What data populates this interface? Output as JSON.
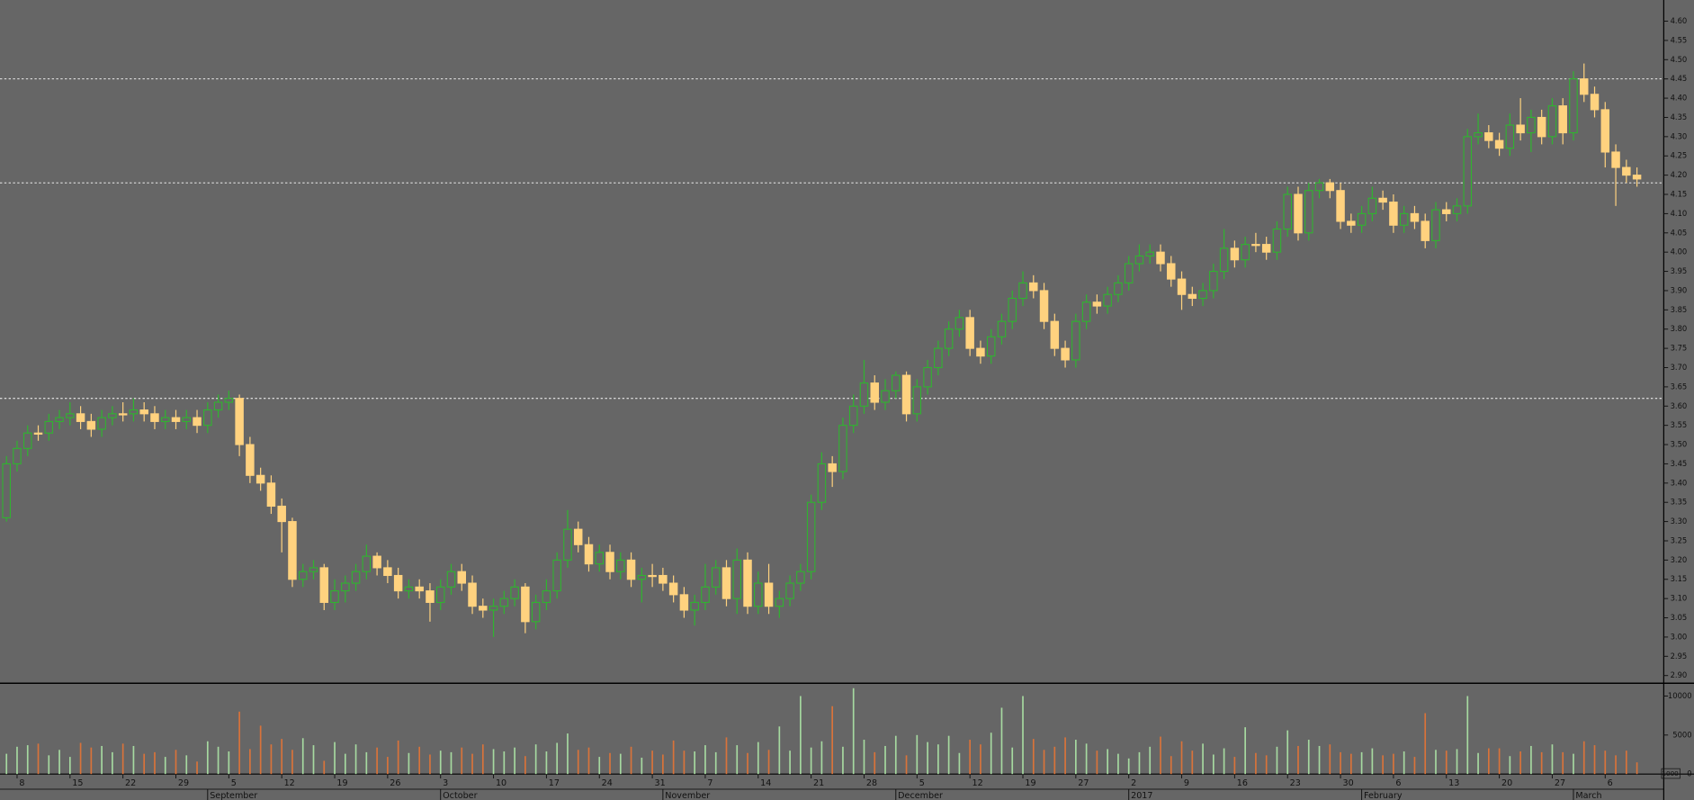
{
  "chart_data": {
    "type": "candlestick",
    "open": [
      3.31,
      3.45,
      3.49,
      3.53,
      3.53,
      3.56,
      3.57,
      3.58,
      3.56,
      3.54,
      3.57,
      3.58,
      3.58,
      3.59,
      3.58,
      3.56,
      3.57,
      3.56,
      3.57,
      3.55,
      3.59,
      3.61,
      3.62,
      3.5,
      3.42,
      3.4,
      3.34,
      3.3,
      3.15,
      3.17,
      3.18,
      3.09,
      3.12,
      3.14,
      3.17,
      3.21,
      3.18,
      3.16,
      3.12,
      3.13,
      3.12,
      3.09,
      3.13,
      3.17,
      3.14,
      3.08,
      3.07,
      3.08,
      3.1,
      3.13,
      3.04,
      3.09,
      3.12,
      3.2,
      3.28,
      3.24,
      3.19,
      3.22,
      3.17,
      3.2,
      3.15,
      3.16,
      3.16,
      3.14,
      3.11,
      3.07,
      3.09,
      3.13,
      3.18,
      3.1,
      3.2,
      3.08,
      3.14,
      3.08,
      3.1,
      3.14,
      3.17,
      3.35,
      3.45,
      3.43,
      3.55,
      3.6,
      3.66,
      3.61,
      3.64,
      3.68,
      3.58,
      3.65,
      3.7,
      3.75,
      3.8,
      3.83,
      3.75,
      3.73,
      3.78,
      3.82,
      3.88,
      3.92,
      3.9,
      3.82,
      3.75,
      3.72,
      3.82,
      3.87,
      3.86,
      3.89,
      3.92,
      3.97,
      3.99,
      4.0,
      3.97,
      3.93,
      3.89,
      3.88,
      3.9,
      3.95,
      4.01,
      3.98,
      4.02,
      4.02,
      4.0,
      4.06,
      4.15,
      4.05,
      4.16,
      4.18,
      4.16,
      4.08,
      4.07,
      4.1,
      4.14,
      4.13,
      4.07,
      4.1,
      4.08,
      4.03,
      4.11,
      4.1,
      4.12,
      4.3,
      4.31,
      4.29,
      4.27,
      4.33,
      4.31,
      4.35,
      4.3,
      4.38,
      4.31,
      4.45,
      4.41,
      4.37,
      4.26,
      4.22,
      4.2
    ],
    "high": [
      3.47,
      3.51,
      3.55,
      3.55,
      3.58,
      3.59,
      3.61,
      3.6,
      3.58,
      3.59,
      3.6,
      3.61,
      3.62,
      3.61,
      3.6,
      3.59,
      3.59,
      3.59,
      3.59,
      3.61,
      3.63,
      3.64,
      3.63,
      3.52,
      3.44,
      3.42,
      3.36,
      3.31,
      3.19,
      3.2,
      3.19,
      3.15,
      3.16,
      3.19,
      3.24,
      3.22,
      3.2,
      3.18,
      3.15,
      3.15,
      3.14,
      3.15,
      3.19,
      3.19,
      3.16,
      3.1,
      3.1,
      3.12,
      3.15,
      3.14,
      3.11,
      3.15,
      3.22,
      3.33,
      3.3,
      3.26,
      3.24,
      3.24,
      3.22,
      3.22,
      3.18,
      3.19,
      3.18,
      3.16,
      3.13,
      3.11,
      3.19,
      3.2,
      3.2,
      3.23,
      3.22,
      3.17,
      3.19,
      3.12,
      3.16,
      3.19,
      3.37,
      3.48,
      3.47,
      3.57,
      3.63,
      3.72,
      3.68,
      3.67,
      3.69,
      3.69,
      3.67,
      3.72,
      3.77,
      3.82,
      3.85,
      3.85,
      3.77,
      3.8,
      3.84,
      3.9,
      3.95,
      3.94,
      3.92,
      3.84,
      3.77,
      3.84,
      3.89,
      3.89,
      3.91,
      3.94,
      3.99,
      4.02,
      4.02,
      4.02,
      3.99,
      3.95,
      3.91,
      3.92,
      3.97,
      4.06,
      4.03,
      4.04,
      4.05,
      4.04,
      4.08,
      4.17,
      4.17,
      4.18,
      4.19,
      4.19,
      4.18,
      4.1,
      4.12,
      4.17,
      4.16,
      4.15,
      4.12,
      4.12,
      4.1,
      4.13,
      4.13,
      4.14,
      4.32,
      4.36,
      4.33,
      4.31,
      4.36,
      4.4,
      4.37,
      4.37,
      4.4,
      4.4,
      4.47,
      4.49,
      4.43,
      4.39,
      4.28,
      4.24,
      4.22
    ],
    "low": [
      3.3,
      3.43,
      3.47,
      3.51,
      3.51,
      3.54,
      3.55,
      3.54,
      3.52,
      3.52,
      3.55,
      3.56,
      3.56,
      3.56,
      3.54,
      3.54,
      3.54,
      3.54,
      3.53,
      3.53,
      3.57,
      3.59,
      3.47,
      3.4,
      3.38,
      3.32,
      3.22,
      3.13,
      3.13,
      3.15,
      3.07,
      3.07,
      3.09,
      3.12,
      3.15,
      3.16,
      3.14,
      3.1,
      3.1,
      3.1,
      3.04,
      3.07,
      3.11,
      3.12,
      3.06,
      3.05,
      3.0,
      3.06,
      3.08,
      3.01,
      3.02,
      3.07,
      3.1,
      3.18,
      3.22,
      3.17,
      3.17,
      3.15,
      3.15,
      3.13,
      3.09,
      3.13,
      3.12,
      3.09,
      3.05,
      3.03,
      3.07,
      3.11,
      3.08,
      3.06,
      3.06,
      3.06,
      3.06,
      3.05,
      3.08,
      3.12,
      3.15,
      3.33,
      3.39,
      3.41,
      3.53,
      3.58,
      3.59,
      3.59,
      3.62,
      3.56,
      3.56,
      3.63,
      3.68,
      3.73,
      3.78,
      3.73,
      3.71,
      3.71,
      3.76,
      3.8,
      3.86,
      3.88,
      3.8,
      3.73,
      3.7,
      3.7,
      3.8,
      3.84,
      3.84,
      3.87,
      3.9,
      3.95,
      3.97,
      3.95,
      3.91,
      3.85,
      3.86,
      3.86,
      3.88,
      3.93,
      3.96,
      3.96,
      4.0,
      3.98,
      3.98,
      4.04,
      4.03,
      4.03,
      4.14,
      4.14,
      4.06,
      4.05,
      4.05,
      4.08,
      4.11,
      4.05,
      4.05,
      4.06,
      4.01,
      4.01,
      4.08,
      4.08,
      4.1,
      4.28,
      4.27,
      4.25,
      4.25,
      4.29,
      4.26,
      4.28,
      4.28,
      4.28,
      4.29,
      4.39,
      4.35,
      4.22,
      4.12,
      4.18,
      4.17
    ],
    "close": [
      3.45,
      3.49,
      3.53,
      3.53,
      3.56,
      3.57,
      3.58,
      3.56,
      3.54,
      3.57,
      3.58,
      3.58,
      3.59,
      3.58,
      3.56,
      3.57,
      3.56,
      3.57,
      3.55,
      3.59,
      3.61,
      3.62,
      3.5,
      3.42,
      3.4,
      3.34,
      3.3,
      3.15,
      3.17,
      3.18,
      3.09,
      3.12,
      3.14,
      3.17,
      3.21,
      3.18,
      3.16,
      3.12,
      3.13,
      3.12,
      3.09,
      3.13,
      3.17,
      3.14,
      3.08,
      3.07,
      3.08,
      3.1,
      3.13,
      3.04,
      3.09,
      3.12,
      3.2,
      3.28,
      3.24,
      3.19,
      3.22,
      3.17,
      3.2,
      3.15,
      3.16,
      3.16,
      3.14,
      3.11,
      3.07,
      3.09,
      3.13,
      3.18,
      3.1,
      3.2,
      3.08,
      3.14,
      3.08,
      3.1,
      3.14,
      3.17,
      3.35,
      3.45,
      3.43,
      3.55,
      3.6,
      3.66,
      3.61,
      3.64,
      3.68,
      3.58,
      3.65,
      3.7,
      3.75,
      3.8,
      3.83,
      3.75,
      3.73,
      3.78,
      3.82,
      3.88,
      3.92,
      3.9,
      3.82,
      3.75,
      3.72,
      3.82,
      3.87,
      3.86,
      3.89,
      3.92,
      3.97,
      3.99,
      4.0,
      3.97,
      3.93,
      3.89,
      3.88,
      3.9,
      3.95,
      4.01,
      3.98,
      4.02,
      4.02,
      4.0,
      4.06,
      4.15,
      4.05,
      4.16,
      4.18,
      4.16,
      4.08,
      4.07,
      4.1,
      4.14,
      4.13,
      4.07,
      4.1,
      4.08,
      4.03,
      4.11,
      4.1,
      4.12,
      4.3,
      4.31,
      4.29,
      4.27,
      4.33,
      4.31,
      4.35,
      4.3,
      4.38,
      4.31,
      4.45,
      4.41,
      4.37,
      4.26,
      4.22,
      4.2,
      4.19
    ],
    "volume": [
      2600,
      3500,
      3700,
      3900,
      2400,
      3100,
      2200,
      4000,
      3400,
      3600,
      2800,
      3900,
      3600,
      2600,
      2800,
      2200,
      3100,
      2400,
      1600,
      4200,
      3500,
      2900,
      8000,
      3200,
      6200,
      3800,
      4500,
      3100,
      4600,
      3700,
      1700,
      4100,
      2600,
      3800,
      2800,
      3400,
      2200,
      4300,
      2700,
      3500,
      2500,
      3000,
      2800,
      3400,
      2600,
      3800,
      3200,
      2900,
      3400,
      2300,
      3800,
      2900,
      4000,
      5200,
      3100,
      3400,
      2200,
      2700,
      2600,
      3500,
      2100,
      3000,
      2500,
      4300,
      3000,
      2900,
      3700,
      2800,
      4700,
      3700,
      2700,
      4100,
      3100,
      6100,
      3000,
      10000,
      3400,
      4200,
      8700,
      3500,
      11000,
      4400,
      2800,
      3600,
      4900,
      2400,
      5000,
      4100,
      3800,
      4900,
      2700,
      4400,
      3800,
      5300,
      8500,
      3400,
      10000,
      4500,
      3100,
      3500,
      4700,
      4400,
      3900,
      3000,
      3200,
      2600,
      2000,
      2800,
      3500,
      4800,
      2300,
      4200,
      3000,
      3900,
      2500,
      3300,
      2200,
      6000,
      2700,
      2400,
      3500,
      5600,
      3600,
      4400,
      3600,
      3800,
      2800,
      2600,
      2800,
      3300,
      2400,
      2600,
      2900,
      2200,
      7800,
      3100,
      3000,
      3200,
      10000,
      2700,
      3300,
      3300,
      2300,
      2900,
      3600,
      2800,
      3800,
      2800,
      2600,
      4200,
      3700,
      3000,
      2400,
      3000,
      1500
    ],
    "up_color": "#2fb52f",
    "down_color": "#ffd27f",
    "volume_up_color": "#a6d9a0",
    "volume_down_color": "#d9733a",
    "levels": [
      3.62,
      4.18,
      4.45
    ],
    "ylim": [
      2.88,
      4.655
    ],
    "yticks": [
      {
        "value": 2.9,
        "label": "2.90"
      },
      {
        "value": 2.95,
        "label": "2.95"
      },
      {
        "value": 3.0,
        "label": "3.00"
      },
      {
        "value": 3.05,
        "label": "3.05"
      },
      {
        "value": 3.1,
        "label": "3.10"
      },
      {
        "value": 3.15,
        "label": "3.15"
      },
      {
        "value": 3.2,
        "label": "3.20"
      },
      {
        "value": 3.25,
        "label": "3.25"
      },
      {
        "value": 3.3,
        "label": "3.30"
      },
      {
        "value": 3.35,
        "label": "3.35"
      },
      {
        "value": 3.4,
        "label": "3.40"
      },
      {
        "value": 3.45,
        "label": "3.45"
      },
      {
        "value": 3.5,
        "label": "3.50"
      },
      {
        "value": 3.55,
        "label": "3.55"
      },
      {
        "value": 3.6,
        "label": "3.60"
      },
      {
        "value": 3.65,
        "label": "3.65"
      },
      {
        "value": 3.7,
        "label": "3.70"
      },
      {
        "value": 3.75,
        "label": "3.75"
      },
      {
        "value": 3.8,
        "label": "3.80"
      },
      {
        "value": 3.85,
        "label": "3.85"
      },
      {
        "value": 3.9,
        "label": "3.90"
      },
      {
        "value": 3.95,
        "label": "3.95"
      },
      {
        "value": 4.0,
        "label": "4.00"
      },
      {
        "value": 4.05,
        "label": "4.05"
      },
      {
        "value": 4.1,
        "label": "4.10"
      },
      {
        "value": 4.15,
        "label": "4.15"
      },
      {
        "value": 4.2,
        "label": "4.20"
      },
      {
        "value": 4.25,
        "label": "4.25"
      },
      {
        "value": 4.3,
        "label": "4.30"
      },
      {
        "value": 4.35,
        "label": "4.35"
      },
      {
        "value": 4.4,
        "label": "4.40"
      },
      {
        "value": 4.45,
        "label": "4.45"
      },
      {
        "value": 4.5,
        "label": "4.50"
      },
      {
        "value": 4.55,
        "label": "4.55"
      },
      {
        "value": 4.6,
        "label": "4.60"
      }
    ],
    "volume_lim": [
      0,
      11500
    ],
    "volume_ticks": [
      0,
      5000,
      10000
    ],
    "volume_unit_label": "1000",
    "xticks": [
      {
        "value": 1,
        "label": "8"
      },
      {
        "value": 6,
        "label": "15"
      },
      {
        "value": 11,
        "label": "22"
      },
      {
        "value": 16,
        "label": "29"
      },
      {
        "value": 21,
        "label": "5"
      },
      {
        "value": 26,
        "label": "12"
      },
      {
        "value": 31,
        "label": "19"
      },
      {
        "value": 36,
        "label": "26"
      },
      {
        "value": 41,
        "label": "3"
      },
      {
        "value": 46,
        "label": "10"
      },
      {
        "value": 51,
        "label": "17"
      },
      {
        "value": 56,
        "label": "24"
      },
      {
        "value": 61,
        "label": "31"
      },
      {
        "value": 66,
        "label": "7"
      },
      {
        "value": 71,
        "label": "14"
      },
      {
        "value": 76,
        "label": "21"
      },
      {
        "value": 81,
        "label": "28"
      },
      {
        "value": 86,
        "label": "5"
      },
      {
        "value": 91,
        "label": "12"
      },
      {
        "value": 96,
        "label": "19"
      },
      {
        "value": 101,
        "label": "27"
      },
      {
        "value": 106,
        "label": "2"
      },
      {
        "value": 111,
        "label": "9"
      },
      {
        "value": 116,
        "label": "16"
      },
      {
        "value": 121,
        "label": "23"
      },
      {
        "value": 126,
        "label": "30"
      },
      {
        "value": 131,
        "label": "6"
      },
      {
        "value": 136,
        "label": "13"
      },
      {
        "value": 141,
        "label": "20"
      },
      {
        "value": 146,
        "label": "27"
      },
      {
        "value": 151,
        "label": "6"
      }
    ],
    "months": [
      {
        "value": 19,
        "label": "September"
      },
      {
        "value": 41,
        "label": "October"
      },
      {
        "value": 62,
        "label": "November"
      },
      {
        "value": 84,
        "label": "December"
      },
      {
        "value": 106,
        "label": "2017"
      },
      {
        "value": 128,
        "label": "February"
      },
      {
        "value": 148,
        "label": "March"
      }
    ]
  }
}
